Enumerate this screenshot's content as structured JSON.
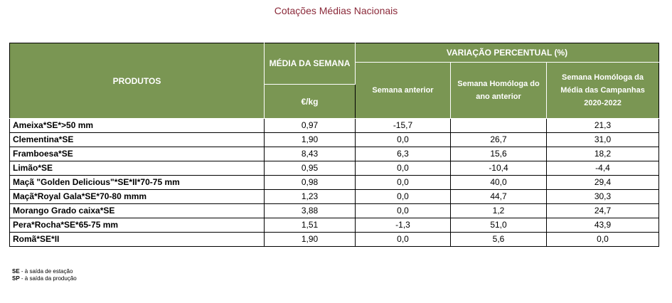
{
  "title": "Cotações Médias Nacionais",
  "headers": {
    "produtos": "PRODUTOS",
    "media": "MÉDIA DA SEMANA",
    "unit": "€/kg",
    "variacao": "VARIAÇÃO PERCENTUAL (%)",
    "semana_anterior": "Semana anterior",
    "semana_homologa": "Semana Homóloga do ano anterior",
    "semana_homologa_media": "Semana Homóloga da Média das Campanhas 2020-2022"
  },
  "rows": [
    {
      "produto": "Ameixa*SE*>50 mm",
      "media": "0,97",
      "anterior": "-15,7",
      "homologa": "",
      "campanhas": "21,3"
    },
    {
      "produto": "Clementina*SE",
      "media": "1,90",
      "anterior": "0,0",
      "homologa": "26,7",
      "campanhas": "31,0"
    },
    {
      "produto": "Framboesa*SE",
      "media": "8,43",
      "anterior": "6,3",
      "homologa": "15,6",
      "campanhas": "18,2"
    },
    {
      "produto": "Limão*SE",
      "media": "0,95",
      "anterior": "0,0",
      "homologa": "-10,4",
      "campanhas": "-4,4"
    },
    {
      "produto": "Maçã \"Golden Delicious\"*SE*II*70-75 mm",
      "media": "0,98",
      "anterior": "0,0",
      "homologa": "40,0",
      "campanhas": "29,4"
    },
    {
      "produto": "Maçã*Royal Gala*SE*70-80 mmm",
      "media": "1,23",
      "anterior": "0,0",
      "homologa": "44,7",
      "campanhas": "30,3"
    },
    {
      "produto": "Morango Grado caixa*SE",
      "media": "3,88",
      "anterior": "0,0",
      "homologa": "1,2",
      "campanhas": "24,7"
    },
    {
      "produto": "Pera*Rocha*SE*65-75 mm",
      "media": "1,51",
      "anterior": "-1,3",
      "homologa": "51,0",
      "campanhas": "43,9"
    },
    {
      "produto": "Romã*SE*II",
      "media": "1,90",
      "anterior": "0,0",
      "homologa": "5,6",
      "campanhas": "0,0"
    }
  ],
  "footnotes": [
    {
      "code": "SE",
      "text": " - à saída de estação"
    },
    {
      "code": "SP",
      "text": " - à saída da produção"
    }
  ],
  "colors": {
    "header_bg": "#7a9653",
    "title": "#8b2a3a"
  }
}
